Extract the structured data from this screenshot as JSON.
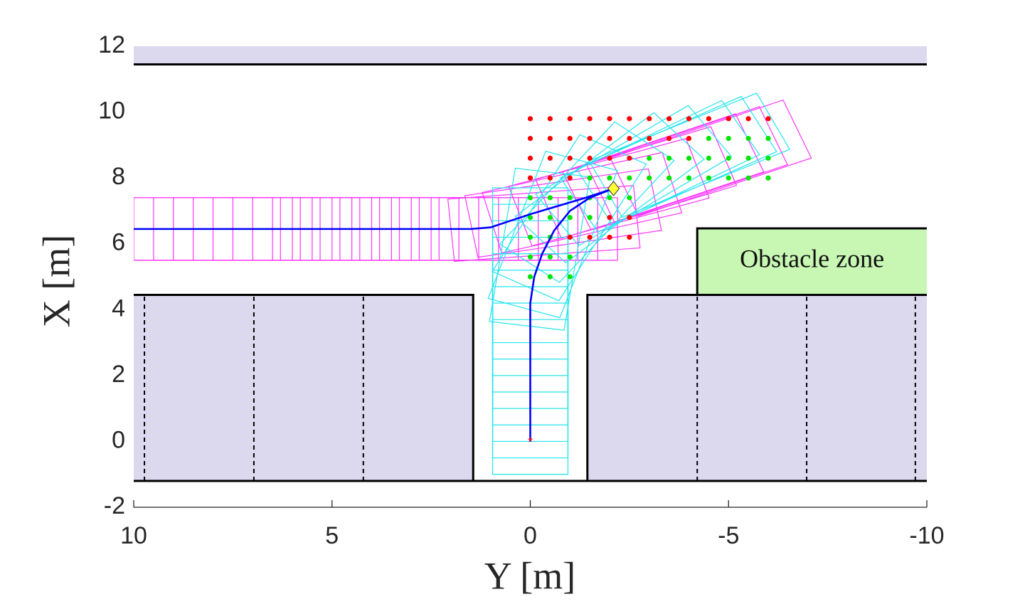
{
  "chart_data": {
    "type": "trajectory",
    "xlabel": "Y [m]",
    "ylabel": "X [m]",
    "xlim": [
      10,
      -10
    ],
    "ylim": [
      -2,
      12
    ],
    "xticks": [
      10,
      5,
      0,
      -5,
      -10
    ],
    "yticks": [
      -2,
      0,
      2,
      4,
      6,
      8,
      10,
      12
    ],
    "vehicle": {
      "length": 4.7,
      "width": 1.9,
      "rear_overhang": 1.0
    },
    "regions": [
      {
        "x": [
          10,
          -10
        ],
        "y": [
          11.45,
          12
        ],
        "color": "#dcd8ee"
      },
      {
        "x": [
          10,
          1.44
        ],
        "y": [
          -1.2,
          4.45
        ],
        "color": "#dcd8ee"
      },
      {
        "x": [
          -1.44,
          -10
        ],
        "y": [
          -1.2,
          4.45
        ],
        "color": "#dcd8ee"
      },
      {
        "x": [
          -4.21,
          -10
        ],
        "y": [
          4.48,
          6.47
        ],
        "color": "#c8f7b4",
        "label": "Obstacle zone"
      }
    ],
    "boundaries": [
      {
        "x": [
          10,
          -10
        ],
        "y": [
          11.45,
          11.45
        ],
        "dashed": false
      },
      {
        "x": [
          10,
          -10
        ],
        "y": [
          -1.2,
          -1.2
        ],
        "dashed": false
      },
      {
        "x": [
          10,
          1.44,
          1.44
        ],
        "y": [
          4.45,
          4.45,
          -1.2
        ],
        "dashed": false
      },
      {
        "x": [
          -1.44,
          -1.44,
          -10
        ],
        "y": [
          -1.2,
          4.45,
          4.45
        ],
        "dashed": false
      },
      {
        "x": [
          -4.21,
          -4.21,
          -10
        ],
        "y": [
          4.48,
          6.47,
          6.47
        ],
        "dashed": false
      },
      {
        "x": [
          9.73,
          9.73
        ],
        "y": [
          -1.2,
          4.45
        ],
        "dashed": true
      },
      {
        "x": [
          6.97,
          6.97
        ],
        "y": [
          -1.2,
          4.45
        ],
        "dashed": true
      },
      {
        "x": [
          4.21,
          4.21
        ],
        "y": [
          -1.2,
          4.45
        ],
        "dashed": true
      },
      {
        "x": [
          -4.21,
          -4.21
        ],
        "y": [
          -1.2,
          4.45
        ],
        "dashed": true
      },
      {
        "x": [
          -6.97,
          -6.97
        ],
        "y": [
          -1.2,
          4.45
        ],
        "dashed": true
      },
      {
        "x": [
          -9.71,
          -9.71
        ],
        "y": [
          -1.2,
          4.45
        ],
        "dashed": true
      }
    ],
    "series": [
      {
        "style": "footprints",
        "color": "#ff33ff",
        "x": [
          10,
          9.5,
          9,
          8.5,
          8,
          7.5,
          7,
          6.5,
          6,
          5.5,
          5,
          4.5,
          4,
          3.5,
          3,
          2.5,
          2,
          1.5,
          1.0,
          0.5,
          0,
          -0.7,
          -1.4,
          -2.1,
          -2.7,
          -3.3
        ],
        "values": [
          6.45,
          6.45,
          6.45,
          6.45,
          6.45,
          6.45,
          6.45,
          6.45,
          6.45,
          6.45,
          6.45,
          6.45,
          6.45,
          6.45,
          6.45,
          6.45,
          6.45,
          6.45,
          6.5,
          6.7,
          6.9,
          7.15,
          7.4,
          7.68,
          7.9,
          8.1
        ],
        "heading": [
          -90,
          -90,
          -90,
          -90,
          -90,
          -90,
          -90,
          -90,
          -90,
          -90,
          -90,
          -90,
          -90,
          -90,
          -90,
          -90,
          -90,
          -90,
          -85,
          -80,
          -75,
          -72,
          -70,
          -68,
          -68,
          -68
        ]
      },
      {
        "style": "footprints",
        "color": "#22e4ee",
        "x": [
          0,
          0,
          0,
          0,
          0,
          0,
          0,
          0,
          0,
          -0.05,
          -0.15,
          -0.35,
          -0.6,
          -1.0,
          -1.5,
          -2.1,
          -2.5,
          -2.8
        ],
        "values": [
          0,
          0.5,
          1,
          1.5,
          2,
          2.5,
          3,
          3.5,
          4,
          4.5,
          5,
          5.6,
          6.2,
          6.8,
          7.3,
          7.68,
          7.9,
          8.1
        ],
        "heading": [
          0,
          0,
          0,
          0,
          0,
          0,
          0,
          0,
          0,
          -8,
          -18,
          -28,
          -38,
          -48,
          -55,
          -60,
          -62,
          -64
        ]
      },
      {
        "style": "dots",
        "color": "#ff0000",
        "x": [
          0,
          -0.5,
          -1,
          -1.5,
          -2,
          -2.5,
          -3,
          -3.5,
          -4,
          -4.5,
          -5,
          -5.5,
          -6,
          0,
          -0.5,
          -1,
          -1.5,
          -2,
          -2.5,
          -3,
          -3.5,
          -4,
          0,
          -0.5,
          -1,
          -1.5,
          -2,
          -2.5,
          0,
          -0.5,
          -1,
          -2,
          -2.5,
          -1,
          -1.5,
          -2,
          -2.5
        ],
        "values": [
          9.8,
          9.8,
          9.8,
          9.8,
          9.8,
          9.8,
          9.8,
          9.8,
          9.8,
          9.8,
          9.8,
          9.8,
          9.8,
          9.2,
          9.2,
          9.2,
          9.2,
          9.2,
          9.2,
          9.2,
          9.2,
          9.2,
          8.6,
          8.6,
          8.6,
          8.6,
          8.6,
          8.6,
          8.0,
          8.0,
          8.0,
          6.8,
          6.8,
          6.2,
          6.2,
          6.2,
          6.2
        ]
      },
      {
        "style": "dots",
        "color": "#00e600",
        "x": [
          -4.5,
          -5,
          -5.5,
          -6,
          -3,
          -3.5,
          -4,
          -4.5,
          -5,
          -5.5,
          -6,
          -1.5,
          -2,
          -2.5,
          -3,
          -3.5,
          -4,
          -4.5,
          -5,
          -5.5,
          -6,
          0,
          -0.5,
          -1,
          -1.5,
          -2,
          -2.5,
          0,
          -0.5,
          -1,
          -1.5,
          0,
          -0.5,
          0,
          -0.5,
          -1,
          0,
          -0.5,
          -1
        ],
        "values": [
          9.2,
          9.2,
          9.2,
          9.2,
          8.6,
          8.6,
          8.6,
          8.6,
          8.6,
          8.6,
          8.6,
          8.0,
          8.0,
          8.0,
          8.0,
          8.0,
          8.0,
          8.0,
          8.0,
          8.0,
          8.0,
          7.4,
          7.4,
          7.4,
          7.4,
          7.4,
          7.4,
          6.8,
          6.8,
          6.8,
          6.8,
          6.2,
          6.2,
          5.6,
          5.6,
          5.6,
          5.0,
          5.0,
          5.0
        ]
      },
      {
        "style": "line",
        "color": "#0000ff",
        "x": [
          10,
          5,
          1.5,
          1.0,
          0.5,
          0,
          -0.7,
          -1.4,
          -2.1
        ],
        "values": [
          6.45,
          6.45,
          6.45,
          6.5,
          6.7,
          6.9,
          7.15,
          7.4,
          7.68
        ]
      },
      {
        "style": "line",
        "color": "#0000ff",
        "x": [
          0,
          0,
          0,
          0,
          -0.1,
          -0.3,
          -0.6,
          -1.0,
          -1.5,
          -2.1
        ],
        "values": [
          0,
          2,
          3.5,
          4.2,
          5.0,
          5.7,
          6.4,
          7.0,
          7.4,
          7.68
        ]
      },
      {
        "style": "star",
        "color": "#ff0000",
        "x": [
          0
        ],
        "values": [
          0
        ]
      },
      {
        "style": "diamond",
        "color": "#ffff33",
        "x": [
          -2.1
        ],
        "values": [
          7.68
        ]
      }
    ]
  }
}
